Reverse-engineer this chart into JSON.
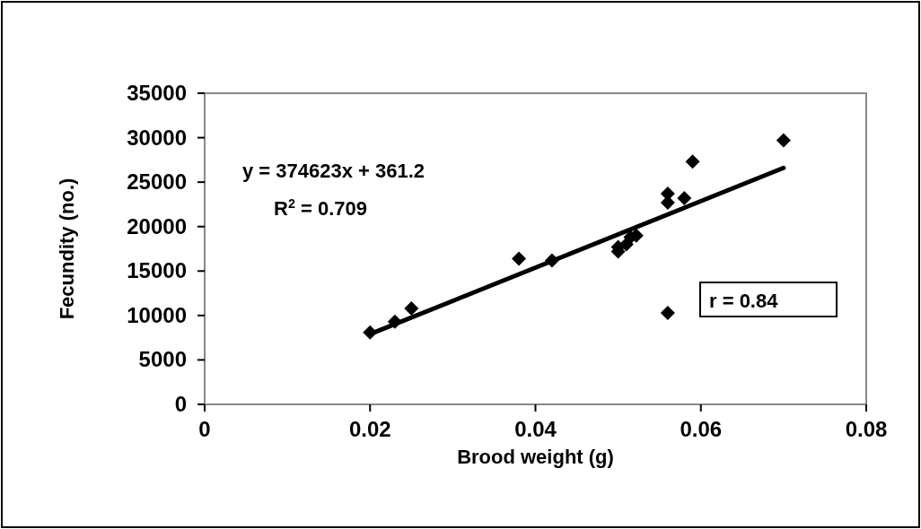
{
  "chart_data": {
    "type": "scatter",
    "xlabel": "Brood weight (g)",
    "ylabel": "Fecundity (no.)",
    "xlim": [
      0,
      0.08
    ],
    "xticks": [
      0,
      0.02,
      0.04,
      0.06,
      0.08
    ],
    "ylim": [
      0,
      35000
    ],
    "yticks": [
      0,
      5000,
      10000,
      15000,
      20000,
      25000,
      30000,
      35000
    ],
    "grid": false,
    "marker": "diamond",
    "series": [
      {
        "color": "#000000",
        "x": [
          0.02,
          0.023,
          0.025,
          0.038,
          0.042,
          0.05,
          0.05,
          0.051,
          0.0515,
          0.0522,
          0.056,
          0.056,
          0.056,
          0.058,
          0.059,
          0.07
        ],
        "values": [
          8100,
          9300,
          10800,
          16400,
          16200,
          17200,
          17700,
          18000,
          18800,
          19000,
          23700,
          22700,
          10300,
          23200,
          27300,
          29700
        ]
      },
      {
        "type": "line",
        "color": "#000000",
        "marker": "none",
        "x": [
          0.02,
          0.07
        ],
        "values": [
          7900,
          26600
        ]
      }
    ],
    "annotations": [
      "y = 374623x + 361.2",
      "R$^{2}$ = 0.709",
      "r = 0.84"
    ]
  }
}
